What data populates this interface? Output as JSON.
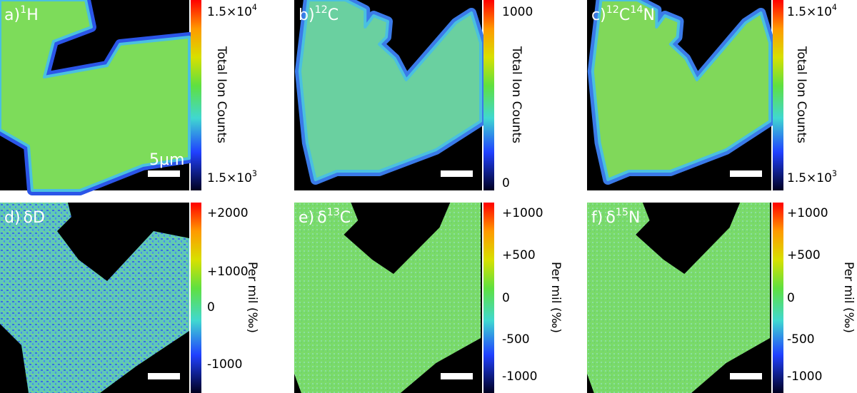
{
  "panels": [
    {
      "label": [
        {
          "text": "a)"
        },
        {
          "sup": "1"
        },
        {
          "text": "H"
        }
      ],
      "scale_bar_label": "5µm",
      "colorbar_title": "Total Ion Counts",
      "ticks": [
        [
          {
            "text": "1.5×10"
          },
          {
            "sup": "4"
          }
        ],
        [
          {
            "text": "1.5×10"
          },
          {
            "sup": "3"
          }
        ]
      ]
    },
    {
      "label": [
        {
          "text": "b)"
        },
        {
          "sup": "12"
        },
        {
          "text": "C"
        }
      ],
      "colorbar_title": "Total Ion Counts",
      "ticks": [
        [
          {
            "text": "1000"
          }
        ],
        [
          {
            "text": "0"
          }
        ]
      ]
    },
    {
      "label": [
        {
          "text": "c)"
        },
        {
          "sup": "12"
        },
        {
          "text": "C"
        },
        {
          "sup": "14"
        },
        {
          "text": "N"
        }
      ],
      "colorbar_title": "Total Ion Counts",
      "ticks": [
        [
          {
            "text": "1.5×10"
          },
          {
            "sup": "4"
          }
        ],
        [
          {
            "text": "1.5×10"
          },
          {
            "sup": "3"
          }
        ]
      ]
    },
    {
      "label": [
        {
          "text": "d)"
        },
        {
          "text": "δD"
        }
      ],
      "colorbar_title": "Per mil (‰)",
      "ticks": [
        [
          {
            "text": "+2000"
          }
        ],
        [
          {
            "text": "+1000"
          }
        ],
        [
          {
            "text": "0"
          }
        ],
        [
          {
            "text": "-1000"
          }
        ]
      ]
    },
    {
      "label": [
        {
          "text": "e)"
        },
        {
          "text": "δ"
        },
        {
          "sup": "13"
        },
        {
          "text": "C"
        }
      ],
      "colorbar_title": "Per mil (‰)",
      "ticks": [
        [
          {
            "text": "+1000"
          }
        ],
        [
          {
            "text": "+500"
          }
        ],
        [
          {
            "text": "0"
          }
        ],
        [
          {
            "text": "-500"
          }
        ],
        [
          {
            "text": "-1000"
          }
        ]
      ]
    },
    {
      "label": [
        {
          "text": "f)"
        },
        {
          "text": "δ"
        },
        {
          "sup": "15"
        },
        {
          "text": "N"
        }
      ],
      "colorbar_title": "Per mil (‰)",
      "ticks": [
        [
          {
            "text": "+1000"
          }
        ],
        [
          {
            "text": "+500"
          }
        ],
        [
          {
            "text": "0"
          }
        ],
        [
          {
            "text": "-500"
          }
        ],
        [
          {
            "text": "-1000"
          }
        ]
      ]
    }
  ]
}
